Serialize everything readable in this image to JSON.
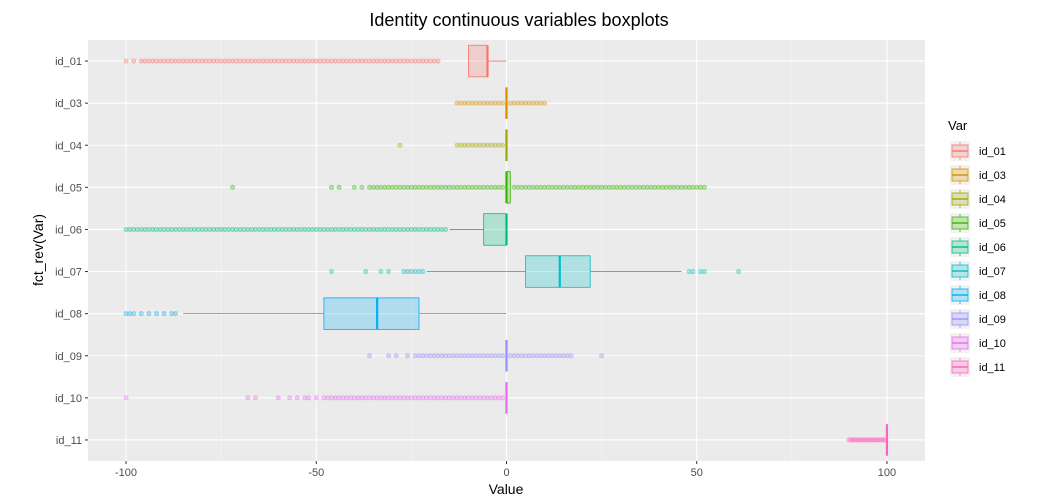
{
  "chart_data": {
    "type": "boxplot",
    "title": "Identity continuous variables boxplots",
    "xlabel": "Value",
    "ylabel": "fct_rev(Var)",
    "xlim": [
      -110,
      110
    ],
    "x_ticks": [
      -100,
      -50,
      0,
      50,
      100
    ],
    "grid": true,
    "legend": {
      "title": "Var",
      "position": "right"
    },
    "series": [
      {
        "name": "id_01",
        "color": "#F8766D",
        "q1": -10,
        "median": -5,
        "q3": -5,
        "whisker_low": -10,
        "whisker_high": 0,
        "outliers": [
          -100,
          -98,
          -96,
          -95,
          -94,
          -93,
          -92,
          -91,
          -90,
          -89,
          -88,
          -87,
          -86,
          -85,
          -84,
          -83,
          -82,
          -81,
          -80,
          -79,
          -78,
          -77,
          -76,
          -75,
          -74,
          -73,
          -72,
          -71,
          -70,
          -69,
          -68,
          -67,
          -66,
          -65,
          -64,
          -63,
          -62,
          -61,
          -60,
          -59,
          -58,
          -57,
          -56,
          -55,
          -54,
          -53,
          -52,
          -51,
          -50,
          -49,
          -48,
          -47,
          -46,
          -45,
          -44,
          -43,
          -42,
          -41,
          -40,
          -39,
          -38,
          -37,
          -36,
          -35,
          -34,
          -33,
          -32,
          -31,
          -30,
          -29,
          -28,
          -27,
          -26,
          -25,
          -24,
          -23,
          -22,
          -21,
          -20,
          -19,
          -18
        ]
      },
      {
        "name": "id_03",
        "color": "#D89000",
        "q1": 0,
        "median": 0,
        "q3": 0,
        "whisker_low": 0,
        "whisker_high": 0,
        "outliers": [
          -13,
          -12,
          -11,
          -10,
          -9,
          -8,
          -7,
          -6,
          -5,
          -4,
          -3,
          -2,
          -1,
          1,
          2,
          3,
          4,
          5,
          6,
          7,
          8,
          9,
          10
        ]
      },
      {
        "name": "id_04",
        "color": "#A3A500",
        "q1": 0,
        "median": 0,
        "q3": 0,
        "whisker_low": 0,
        "whisker_high": 0,
        "outliers": [
          -28,
          -13,
          -12,
          -11,
          -10,
          -9,
          -8,
          -7,
          -6,
          -5,
          -4,
          -3,
          -2,
          -1
        ]
      },
      {
        "name": "id_05",
        "color": "#39B600",
        "q1": 0,
        "median": 0,
        "q3": 1,
        "whisker_low": 0,
        "whisker_high": 1,
        "outliers": [
          -72,
          -46,
          -44,
          -40,
          -38,
          -36,
          -35,
          -34,
          -33,
          -32,
          -31,
          -30,
          -29,
          -28,
          -27,
          -26,
          -25,
          -24,
          -23,
          -22,
          -21,
          -20,
          -19,
          -18,
          -17,
          -16,
          -15,
          -14,
          -13,
          -12,
          -11,
          -10,
          -9,
          -8,
          -7,
          -6,
          -5,
          -4,
          -3,
          -2,
          -1,
          2,
          3,
          4,
          5,
          6,
          7,
          8,
          9,
          10,
          11,
          12,
          13,
          14,
          15,
          16,
          17,
          18,
          19,
          20,
          21,
          22,
          23,
          24,
          25,
          26,
          27,
          28,
          29,
          30,
          31,
          32,
          33,
          34,
          35,
          36,
          37,
          38,
          39,
          40,
          41,
          42,
          43,
          44,
          45,
          46,
          47,
          48,
          49,
          50,
          51,
          52
        ]
      },
      {
        "name": "id_06",
        "color": "#00BF7D",
        "q1": -6,
        "median": 0,
        "q3": 0,
        "whisker_low": -15,
        "whisker_high": 0,
        "outliers": [
          -100,
          -99,
          -98,
          -97,
          -96,
          -95,
          -94,
          -93,
          -92,
          -91,
          -90,
          -89,
          -88,
          -87,
          -86,
          -85,
          -84,
          -83,
          -82,
          -81,
          -80,
          -79,
          -78,
          -77,
          -76,
          -75,
          -74,
          -73,
          -72,
          -71,
          -70,
          -69,
          -68,
          -67,
          -66,
          -65,
          -64,
          -63,
          -62,
          -61,
          -60,
          -59,
          -58,
          -57,
          -56,
          -55,
          -54,
          -53,
          -52,
          -51,
          -50,
          -49,
          -48,
          -47,
          -46,
          -45,
          -44,
          -43,
          -42,
          -41,
          -40,
          -39,
          -38,
          -37,
          -36,
          -35,
          -34,
          -33,
          -32,
          -31,
          -30,
          -29,
          -28,
          -27,
          -26,
          -25,
          -24,
          -23,
          -22,
          -21,
          -20,
          -19,
          -18,
          -17,
          -16
        ]
      },
      {
        "name": "id_07",
        "color": "#00BFC4",
        "q1": 5,
        "median": 14,
        "q3": 22,
        "whisker_low": -21,
        "whisker_high": 46,
        "outliers": [
          -46,
          -37,
          -33,
          -31,
          -27,
          -26,
          -25,
          -24,
          -23,
          -22,
          48,
          49,
          51,
          52,
          61
        ]
      },
      {
        "name": "id_08",
        "color": "#00B0F6",
        "q1": -48,
        "median": -34,
        "q3": -23,
        "whisker_low": -85,
        "whisker_high": 0,
        "outliers": [
          -100,
          -99,
          -98,
          -96,
          -94,
          -92,
          -90,
          -88,
          -87
        ]
      },
      {
        "name": "id_09",
        "color": "#9590FF",
        "q1": 0,
        "median": 0,
        "q3": 0,
        "whisker_low": 0,
        "whisker_high": 0,
        "outliers": [
          -36,
          -31,
          -29,
          -26,
          -24,
          -23,
          -22,
          -21,
          -20,
          -19,
          -18,
          -17,
          -16,
          -15,
          -14,
          -13,
          -12,
          -11,
          -10,
          -9,
          -8,
          -7,
          -6,
          -5,
          -4,
          -3,
          -2,
          -1,
          1,
          2,
          3,
          4,
          5,
          6,
          7,
          8,
          9,
          10,
          11,
          12,
          13,
          14,
          15,
          16,
          17,
          25
        ]
      },
      {
        "name": "id_10",
        "color": "#E76BF3",
        "q1": 0,
        "median": 0,
        "q3": 0,
        "whisker_low": 0,
        "whisker_high": 0,
        "outliers": [
          -100,
          -68,
          -66,
          -60,
          -57,
          -55,
          -53,
          -52,
          -50,
          -48,
          -47,
          -46,
          -45,
          -44,
          -43,
          -42,
          -41,
          -40,
          -39,
          -38,
          -37,
          -36,
          -35,
          -34,
          -33,
          -32,
          -31,
          -30,
          -29,
          -28,
          -27,
          -26,
          -25,
          -24,
          -23,
          -22,
          -21,
          -20,
          -19,
          -18,
          -17,
          -16,
          -15,
          -14,
          -13,
          -12,
          -11,
          -10,
          -9,
          -8,
          -7,
          -6,
          -5,
          -4,
          -3,
          -2,
          -1
        ]
      },
      {
        "name": "id_11",
        "color": "#FF62BC",
        "q1": 100,
        "median": 100,
        "q3": 100,
        "whisker_low": 100,
        "whisker_high": 100,
        "outliers": [
          90,
          90.5,
          91,
          91.5,
          92,
          92.5,
          93,
          93.5,
          94,
          94.5,
          95,
          95.5,
          96,
          96.5,
          97,
          97.5,
          98,
          98.5,
          99,
          99.5
        ]
      }
    ]
  }
}
